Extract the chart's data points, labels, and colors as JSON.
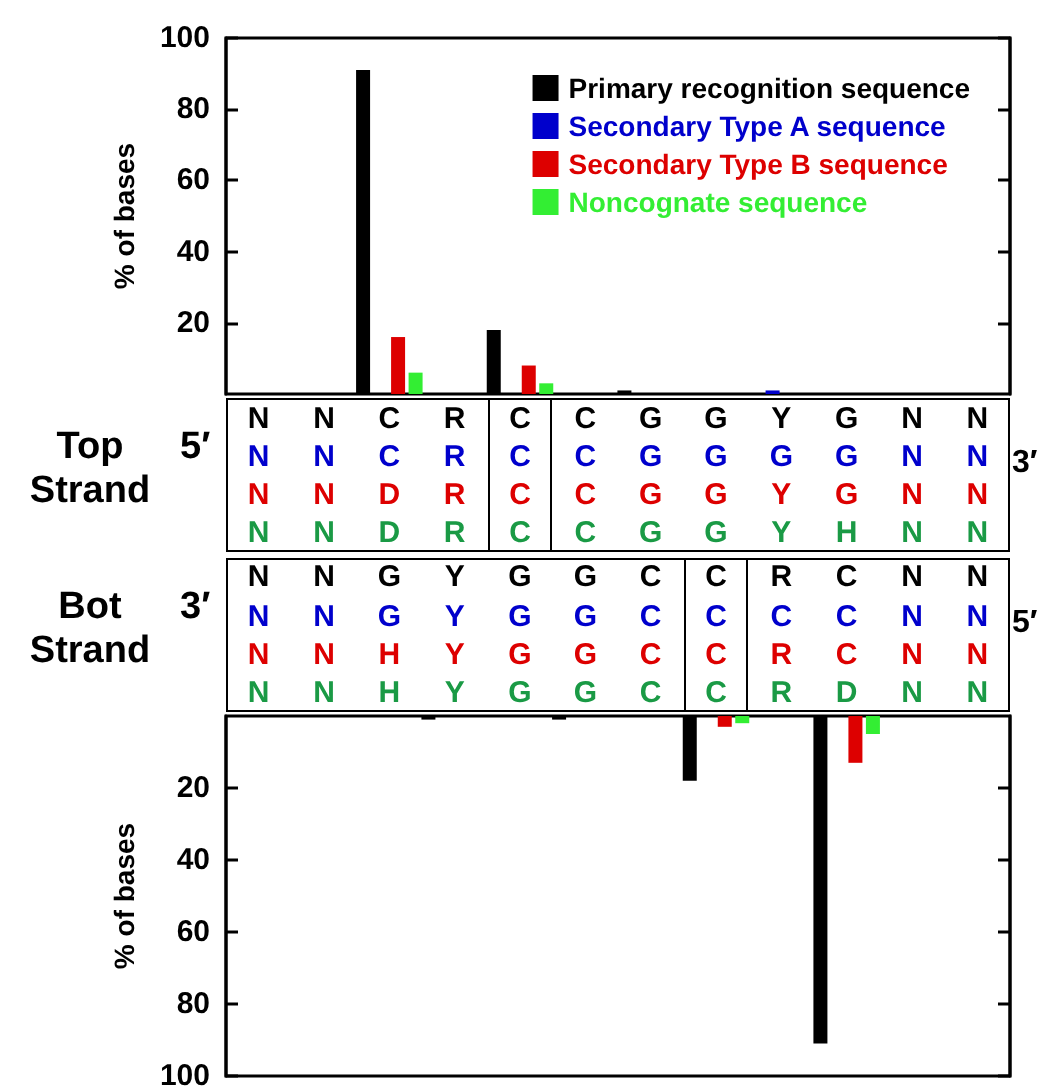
{
  "chart_data": [
    {
      "type": "bar",
      "ylabel": "% of bases",
      "categories": [
        "N",
        "N",
        "C",
        "R",
        "C",
        "C",
        "G",
        "G",
        "Y",
        "G",
        "N",
        "N"
      ],
      "ylim": [
        0,
        100
      ],
      "yticks": [
        20,
        40,
        60,
        80,
        100
      ],
      "legend": "top right",
      "series": [
        {
          "name": "Primary recognition sequence",
          "color": "#000000",
          "values": [
            0,
            0,
            91,
            0,
            18,
            0,
            1,
            0,
            0,
            0,
            0,
            0
          ]
        },
        {
          "name": "Secondary Type A sequence",
          "color": "#0000cc",
          "values": [
            0,
            0,
            0,
            0,
            0,
            0,
            0,
            0,
            1,
            0,
            0,
            0
          ]
        },
        {
          "name": "Secondary Type B sequence",
          "color": "#dd0000",
          "values": [
            0,
            0,
            16,
            0,
            8,
            0,
            0,
            0,
            0,
            0,
            0,
            0
          ]
        },
        {
          "name": "Noncognate sequence",
          "color": "#33ee33",
          "values": [
            0,
            0,
            6,
            0,
            3,
            0,
            0,
            0,
            0,
            0,
            0,
            0
          ]
        }
      ]
    },
    {
      "type": "other",
      "annotations": [
        "Top Strand",
        "5′",
        "3′",
        "N N C R C C G G G G N N",
        "N N D R C C G G Y G N N",
        "N N D R C C G G Y H N N",
        "Bot Strand",
        "3′",
        "5′",
        "N N G Y G G C C C C N N",
        "N N H Y G G C C R C N N",
        "N N H Y G G C C R D N N"
      ]
    },
    {
      "type": "bar",
      "ylabel": "% of bases",
      "categories": [
        "N",
        "N",
        "G",
        "Y",
        "G",
        "G",
        "C",
        "C",
        "R",
        "C",
        "N",
        "N"
      ],
      "ylim": [
        100,
        0
      ],
      "yticks": [
        20,
        40,
        60,
        80,
        100
      ],
      "series": [
        {
          "color": "#000000",
          "values": [
            0,
            0,
            0,
            1,
            0,
            1,
            0,
            18,
            0,
            91,
            0,
            0
          ]
        },
        {
          "color": "#0000cc",
          "values": [
            0,
            0,
            0,
            0,
            0,
            0,
            0,
            0,
            0,
            0,
            0,
            0
          ]
        },
        {
          "color": "#dd0000",
          "values": [
            0,
            0,
            0,
            0,
            0,
            0,
            0,
            3,
            0,
            13,
            0,
            0
          ]
        },
        {
          "color": "#33ee33",
          "values": [
            0,
            0,
            0,
            0,
            0,
            0,
            0,
            2,
            0,
            5,
            0,
            0
          ]
        }
      ]
    }
  ]
}
